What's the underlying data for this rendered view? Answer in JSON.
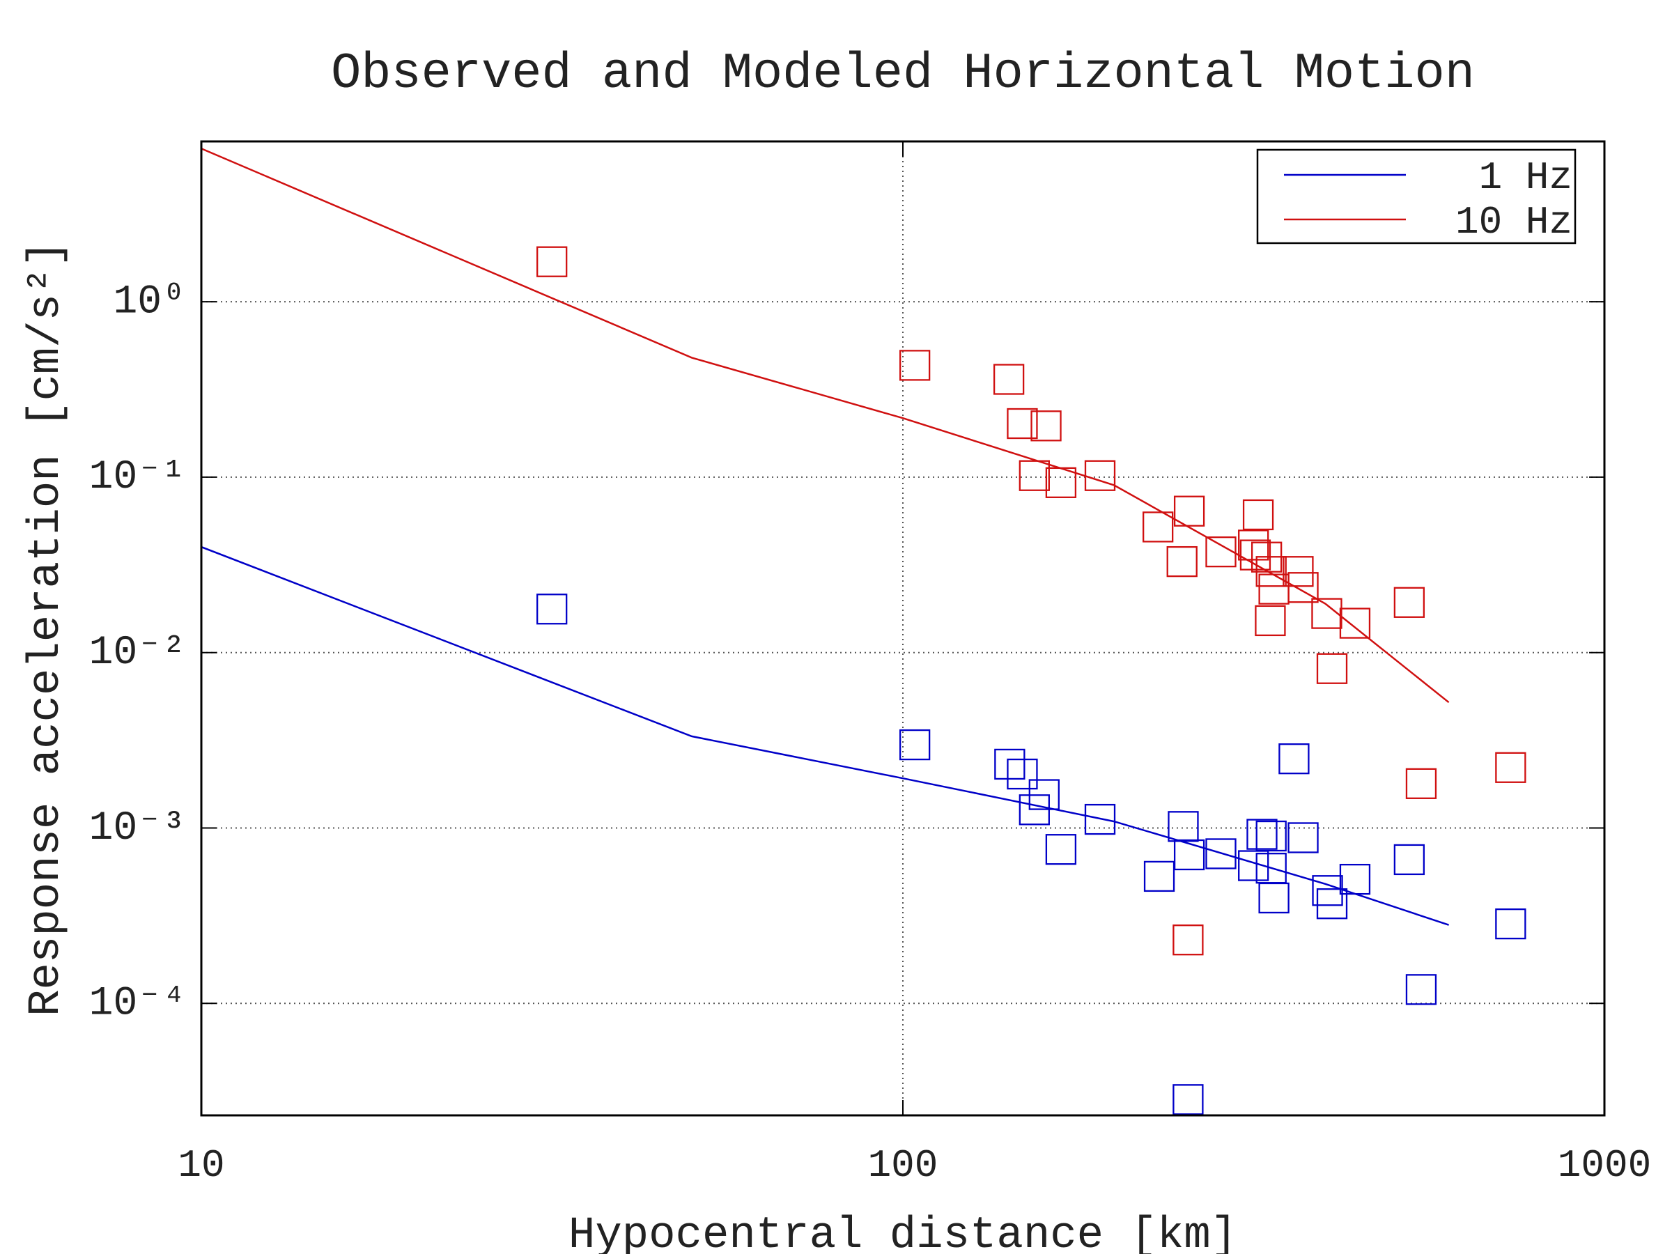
{
  "chart_data": {
    "type": "line",
    "title": "Observed and Modeled Horizontal Motion",
    "xlabel": "Hypocentral distance [km]",
    "ylabel": "Response acceleration [cm/s²]",
    "xscale": "log",
    "yscale": "log",
    "xlim": [
      10,
      1000
    ],
    "ylim": [
      2.3e-05,
      8.2
    ],
    "xticks": [
      10,
      100,
      1000
    ],
    "yticks": [
      {
        "value": 0.0001,
        "label": "10⁻⁴"
      },
      {
        "value": 0.001,
        "label": "10⁻³"
      },
      {
        "value": 0.01,
        "label": "10⁻²"
      },
      {
        "value": 0.1,
        "label": "10⁻¹"
      },
      {
        "value": 1,
        "label": "10⁰"
      }
    ],
    "grid": true,
    "legend": "upper right",
    "series": [
      {
        "name": "1 Hz",
        "color": "#0000c8",
        "style": "line",
        "x": [
          10,
          50,
          100,
          200,
          400,
          600
        ],
        "values": [
          0.04,
          0.00333,
          0.00192,
          0.00109,
          0.00048,
          0.00028
        ]
      },
      {
        "name": "10 Hz",
        "color": "#d01010",
        "style": "line",
        "x": [
          10,
          50,
          100,
          200,
          400,
          600
        ],
        "values": [
          7.46,
          0.48,
          0.217,
          0.09,
          0.019,
          0.0052
        ]
      },
      {
        "color": "#d01010",
        "style": "markers",
        "x": [
          31.6,
          104,
          141.6,
          148,
          160,
          154,
          168,
          191,
          231,
          256,
          250,
          284,
          321,
          316,
          318,
          330,
          335,
          338,
          366,
          372,
          334,
          402,
          441,
          409,
          527,
          255,
          548,
          735
        ],
        "values": [
          1.69,
          0.434,
          0.361,
          0.202,
          0.196,
          0.102,
          0.093,
          0.102,
          0.052,
          0.064,
          0.033,
          0.0375,
          0.061,
          0.041,
          0.036,
          0.035,
          0.029,
          0.023,
          0.029,
          0.0235,
          0.0152,
          0.0167,
          0.0147,
          0.0081,
          0.0193,
          0.00023,
          0.00179,
          0.00221
        ]
      },
      {
        "color": "#0000c8",
        "style": "markers",
        "x": [
          31.6,
          104,
          142,
          148,
          159,
          154,
          168,
          191,
          251,
          232,
          256,
          284,
          325,
          335,
          316,
          338,
          335,
          372,
          403,
          409,
          441,
          361,
          527,
          548,
          735,
          255
        ],
        "values": [
          0.0177,
          0.00298,
          0.00231,
          0.00203,
          0.00155,
          0.00127,
          0.000755,
          0.00112,
          0.00102,
          0.00053,
          0.000703,
          0.000713,
          0.00092,
          0.0009,
          0.00061,
          0.000399,
          0.00059,
          0.00088,
          0.00044,
          0.00037,
          0.00051,
          0.00248,
          0.00066,
          0.00012,
          0.000284,
          2.83e-05
        ]
      }
    ]
  }
}
